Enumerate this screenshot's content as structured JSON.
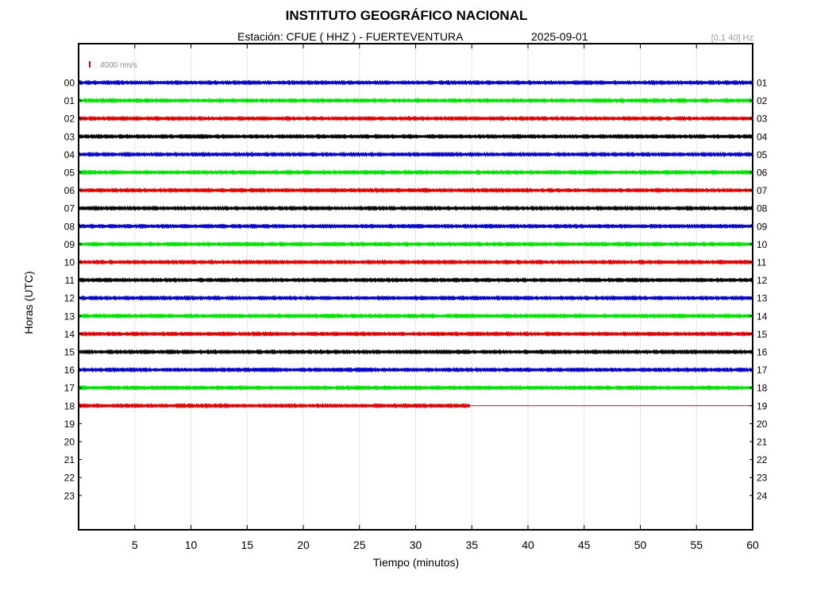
{
  "header": {
    "title": "INSTITUTO GEOGRÁFICO NACIONAL",
    "station": "Estación:  CFUE ( HHZ ) - FUERTEVENTURA",
    "date": "2025-09-01",
    "filter": "[0.1 40] Hz"
  },
  "chart_data": {
    "type": "line",
    "title": "INSTITUTO GEOGRÁFICO NACIONAL",
    "xlabel": "Tiempo (minutos)",
    "ylabel": "Horas (UTC)",
    "xlim": [
      0,
      60
    ],
    "x_ticks": [
      "5",
      "10",
      "15",
      "20",
      "25",
      "30",
      "35",
      "40",
      "45",
      "50",
      "55",
      "60"
    ],
    "y_left_ticks": [
      "00",
      "01",
      "02",
      "03",
      "04",
      "05",
      "06",
      "07",
      "08",
      "09",
      "10",
      "11",
      "12",
      "13",
      "14",
      "15",
      "16",
      "17",
      "18",
      "19",
      "20",
      "21",
      "22",
      "23"
    ],
    "y_right_ticks": [
      "01",
      "02",
      "03",
      "04",
      "05",
      "06",
      "07",
      "08",
      "09",
      "10",
      "11",
      "12",
      "13",
      "14",
      "15",
      "16",
      "17",
      "18",
      "19",
      "20",
      "21",
      "22",
      "23",
      "24"
    ],
    "scale_label": "4000 nm/s",
    "grid": true,
    "trace_colors": [
      "#0000c8",
      "#00e000",
      "#dd0000",
      "#000000"
    ],
    "scale_color": "#dd0000",
    "traces": [
      {
        "hour": "00",
        "end_minute": 60
      },
      {
        "hour": "01",
        "end_minute": 60
      },
      {
        "hour": "02",
        "end_minute": 60
      },
      {
        "hour": "03",
        "end_minute": 60
      },
      {
        "hour": "04",
        "end_minute": 60
      },
      {
        "hour": "05",
        "end_minute": 60
      },
      {
        "hour": "06",
        "end_minute": 60
      },
      {
        "hour": "07",
        "end_minute": 60
      },
      {
        "hour": "08",
        "end_minute": 60
      },
      {
        "hour": "09",
        "end_minute": 60
      },
      {
        "hour": "10",
        "end_minute": 60
      },
      {
        "hour": "11",
        "end_minute": 60
      },
      {
        "hour": "12",
        "end_minute": 60
      },
      {
        "hour": "13",
        "end_minute": 60
      },
      {
        "hour": "14",
        "end_minute": 60
      },
      {
        "hour": "15",
        "end_minute": 60
      },
      {
        "hour": "16",
        "end_minute": 60
      },
      {
        "hour": "17",
        "end_minute": 60
      },
      {
        "hour": "18",
        "end_minute": 34.8
      }
    ]
  }
}
